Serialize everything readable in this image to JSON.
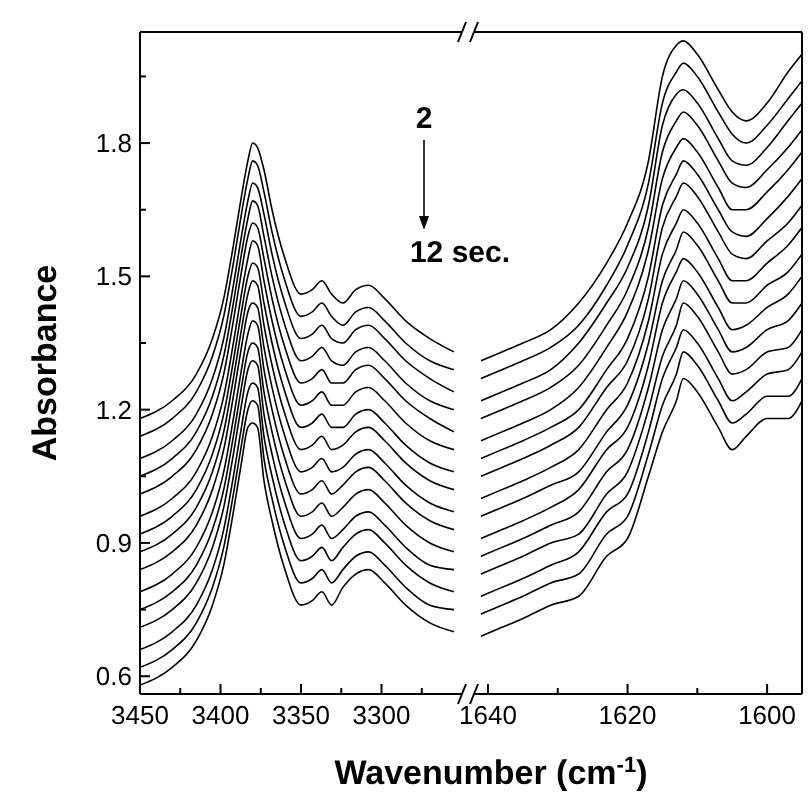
{
  "chart_data": [
    {
      "type": "line",
      "xlabel": "Wavenumber (cm$^{-1}$)",
      "ylabel": "Absorbance",
      "annotations": [
        "2",
        "12 sec."
      ],
      "xlim": [
        3450,
        3250
      ],
      "xticks": [
        3450,
        {
          "value": 3425,
          "label": null
        },
        3400,
        {
          "value": 3375,
          "label": null
        },
        3350,
        {
          "value": 3325,
          "label": null
        },
        3300,
        {
          "value": 3275,
          "label": null
        }
      ],
      "ylim": [
        0.56,
        2.05
      ],
      "yticks": [
        0.6,
        {
          "value": 0.75,
          "label": null
        },
        0.9,
        {
          "value": 1.05,
          "label": null
        },
        1.2,
        {
          "value": 1.35,
          "label": null
        },
        1.5,
        {
          "value": 1.65,
          "label": null
        },
        1.8,
        {
          "value": 1.95,
          "label": null
        }
      ],
      "grid": false,
      "marker": "none",
      "line_style": "solid",
      "x": [
        3450,
        3430,
        3415,
        3405,
        3398,
        3392,
        3387,
        3383,
        3380,
        3377,
        3373,
        3368,
        3360,
        3350,
        3343,
        3337,
        3331,
        3324,
        3316,
        3308,
        3298,
        3285,
        3270,
        3255
      ],
      "series": [
        {
          "color": "#000000",
          "values": [
            1.18,
            1.22,
            1.28,
            1.36,
            1.45,
            1.57,
            1.68,
            1.76,
            1.8,
            1.79,
            1.74,
            1.65,
            1.54,
            1.46,
            1.47,
            1.49,
            1.46,
            1.44,
            1.47,
            1.48,
            1.45,
            1.4,
            1.36,
            1.33
          ]
        },
        {
          "color": "#000000",
          "values": [
            1.14,
            1.18,
            1.24,
            1.32,
            1.41,
            1.53,
            1.64,
            1.72,
            1.76,
            1.75,
            1.69,
            1.6,
            1.49,
            1.41,
            1.42,
            1.44,
            1.41,
            1.39,
            1.42,
            1.43,
            1.4,
            1.35,
            1.31,
            1.29
          ]
        },
        {
          "color": "#000000",
          "values": [
            1.09,
            1.13,
            1.19,
            1.27,
            1.36,
            1.48,
            1.59,
            1.67,
            1.71,
            1.7,
            1.64,
            1.55,
            1.44,
            1.36,
            1.37,
            1.39,
            1.36,
            1.35,
            1.38,
            1.39,
            1.36,
            1.31,
            1.27,
            1.24
          ]
        },
        {
          "color": "#000000",
          "values": [
            1.05,
            1.09,
            1.15,
            1.23,
            1.32,
            1.44,
            1.55,
            1.63,
            1.67,
            1.66,
            1.59,
            1.5,
            1.39,
            1.31,
            1.32,
            1.34,
            1.31,
            1.3,
            1.33,
            1.34,
            1.31,
            1.26,
            1.22,
            1.2
          ]
        },
        {
          "color": "#000000",
          "values": [
            1.01,
            1.05,
            1.11,
            1.19,
            1.28,
            1.4,
            1.51,
            1.59,
            1.62,
            1.61,
            1.54,
            1.45,
            1.34,
            1.26,
            1.27,
            1.29,
            1.26,
            1.26,
            1.29,
            1.3,
            1.27,
            1.22,
            1.18,
            1.15
          ]
        },
        {
          "color": "#000000",
          "values": [
            0.96,
            1.0,
            1.06,
            1.14,
            1.23,
            1.35,
            1.46,
            1.54,
            1.58,
            1.57,
            1.49,
            1.4,
            1.29,
            1.21,
            1.22,
            1.24,
            1.21,
            1.21,
            1.24,
            1.25,
            1.22,
            1.17,
            1.13,
            1.11
          ]
        },
        {
          "color": "#000000",
          "values": [
            0.92,
            0.96,
            1.02,
            1.1,
            1.19,
            1.31,
            1.42,
            1.5,
            1.53,
            1.52,
            1.44,
            1.35,
            1.24,
            1.16,
            1.17,
            1.19,
            1.16,
            1.16,
            1.19,
            1.2,
            1.17,
            1.12,
            1.08,
            1.06
          ]
        },
        {
          "color": "#000000",
          "values": [
            0.88,
            0.92,
            0.98,
            1.06,
            1.15,
            1.27,
            1.38,
            1.46,
            1.49,
            1.48,
            1.39,
            1.3,
            1.19,
            1.11,
            1.12,
            1.14,
            1.11,
            1.12,
            1.15,
            1.16,
            1.13,
            1.08,
            1.04,
            1.02
          ]
        },
        {
          "color": "#000000",
          "values": [
            0.84,
            0.88,
            0.94,
            1.02,
            1.11,
            1.23,
            1.34,
            1.42,
            1.44,
            1.43,
            1.34,
            1.25,
            1.14,
            1.06,
            1.07,
            1.09,
            1.06,
            1.07,
            1.1,
            1.11,
            1.08,
            1.03,
            0.99,
            0.97
          ]
        },
        {
          "color": "#000000",
          "values": [
            0.79,
            0.83,
            0.89,
            0.97,
            1.06,
            1.18,
            1.29,
            1.37,
            1.4,
            1.39,
            1.29,
            1.2,
            1.09,
            1.01,
            1.02,
            1.04,
            1.01,
            1.03,
            1.06,
            1.07,
            1.04,
            0.99,
            0.95,
            0.93
          ]
        },
        {
          "color": "#000000",
          "values": [
            0.75,
            0.79,
            0.85,
            0.93,
            1.02,
            1.14,
            1.25,
            1.33,
            1.35,
            1.34,
            1.24,
            1.15,
            1.04,
            0.96,
            0.97,
            0.99,
            0.96,
            0.98,
            1.01,
            1.02,
            0.99,
            0.94,
            0.9,
            0.88
          ]
        },
        {
          "color": "#000000",
          "values": [
            0.71,
            0.75,
            0.81,
            0.89,
            0.98,
            1.1,
            1.21,
            1.29,
            1.31,
            1.3,
            1.19,
            1.1,
            0.99,
            0.91,
            0.92,
            0.94,
            0.91,
            0.93,
            0.96,
            0.97,
            0.94,
            0.89,
            0.85,
            0.84
          ]
        },
        {
          "color": "#000000",
          "values": [
            0.66,
            0.7,
            0.76,
            0.84,
            0.93,
            1.05,
            1.16,
            1.24,
            1.26,
            1.25,
            1.14,
            1.05,
            0.94,
            0.86,
            0.87,
            0.89,
            0.86,
            0.89,
            0.92,
            0.93,
            0.9,
            0.85,
            0.81,
            0.79
          ]
        },
        {
          "color": "#000000",
          "values": [
            0.62,
            0.66,
            0.72,
            0.8,
            0.89,
            1.01,
            1.12,
            1.2,
            1.22,
            1.21,
            1.09,
            1.0,
            0.89,
            0.81,
            0.82,
            0.84,
            0.81,
            0.84,
            0.87,
            0.88,
            0.85,
            0.8,
            0.76,
            0.75
          ]
        },
        {
          "color": "#000000",
          "values": [
            0.58,
            0.62,
            0.68,
            0.76,
            0.85,
            0.97,
            1.08,
            1.16,
            1.17,
            1.16,
            1.04,
            0.95,
            0.84,
            0.76,
            0.77,
            0.79,
            0.76,
            0.8,
            0.83,
            0.84,
            0.81,
            0.76,
            0.72,
            0.7
          ]
        }
      ]
    },
    {
      "type": "line",
      "tick_labels": "x",
      "xlim": [
        1642,
        1595
      ],
      "xticks": [
        1640,
        {
          "value": 1630,
          "label": null
        },
        1620,
        {
          "value": 1610,
          "label": null
        },
        1600
      ],
      "ylim": [
        0.56,
        2.05
      ],
      "grid": false,
      "marker": "none",
      "line_style": "solid",
      "x": [
        1641,
        1638,
        1635,
        1631,
        1627,
        1623,
        1620,
        1617,
        1615,
        1613,
        1612,
        1610,
        1607,
        1605,
        1603,
        1600,
        1597,
        1595
      ],
      "series": [
        {
          "color": "#000000",
          "values": [
            1.31,
            1.33,
            1.35,
            1.38,
            1.44,
            1.53,
            1.62,
            1.76,
            1.95,
            2.02,
            2.03,
            2.0,
            1.92,
            1.87,
            1.85,
            1.89,
            1.96,
            2.0
          ]
        },
        {
          "color": "#000000",
          "values": [
            1.27,
            1.29,
            1.31,
            1.34,
            1.39,
            1.48,
            1.57,
            1.71,
            1.89,
            1.96,
            1.98,
            1.95,
            1.87,
            1.82,
            1.8,
            1.84,
            1.9,
            1.94
          ]
        },
        {
          "color": "#000000",
          "values": [
            1.22,
            1.24,
            1.26,
            1.29,
            1.35,
            1.44,
            1.52,
            1.66,
            1.84,
            1.91,
            1.92,
            1.89,
            1.81,
            1.76,
            1.75,
            1.79,
            1.85,
            1.89
          ]
        },
        {
          "color": "#000000",
          "values": [
            1.18,
            1.2,
            1.22,
            1.25,
            1.3,
            1.39,
            1.47,
            1.61,
            1.78,
            1.85,
            1.87,
            1.84,
            1.76,
            1.71,
            1.7,
            1.74,
            1.79,
            1.83
          ]
        },
        {
          "color": "#000000",
          "values": [
            1.13,
            1.15,
            1.17,
            1.2,
            1.25,
            1.34,
            1.42,
            1.56,
            1.72,
            1.79,
            1.81,
            1.78,
            1.7,
            1.65,
            1.65,
            1.69,
            1.74,
            1.78
          ]
        },
        {
          "color": "#000000",
          "values": [
            1.09,
            1.11,
            1.13,
            1.16,
            1.2,
            1.29,
            1.36,
            1.5,
            1.66,
            1.73,
            1.76,
            1.73,
            1.65,
            1.6,
            1.59,
            1.63,
            1.68,
            1.72
          ]
        },
        {
          "color": "#000000",
          "values": [
            1.05,
            1.07,
            1.09,
            1.12,
            1.16,
            1.25,
            1.31,
            1.45,
            1.61,
            1.68,
            1.71,
            1.68,
            1.6,
            1.55,
            1.54,
            1.58,
            1.62,
            1.66
          ]
        },
        {
          "color": "#000000",
          "values": [
            1.0,
            1.02,
            1.04,
            1.07,
            1.11,
            1.2,
            1.26,
            1.4,
            1.55,
            1.62,
            1.65,
            1.62,
            1.54,
            1.49,
            1.49,
            1.53,
            1.57,
            1.61
          ]
        },
        {
          "color": "#000000",
          "values": [
            0.96,
            0.98,
            1.0,
            1.03,
            1.06,
            1.15,
            1.21,
            1.35,
            1.49,
            1.56,
            1.6,
            1.57,
            1.49,
            1.44,
            1.44,
            1.48,
            1.51,
            1.55
          ]
        },
        {
          "color": "#000000",
          "values": [
            0.91,
            0.93,
            0.95,
            0.98,
            1.02,
            1.11,
            1.16,
            1.3,
            1.44,
            1.51,
            1.54,
            1.51,
            1.43,
            1.38,
            1.39,
            1.43,
            1.46,
            1.5
          ]
        },
        {
          "color": "#000000",
          "values": [
            0.87,
            0.89,
            0.91,
            0.94,
            0.97,
            1.06,
            1.11,
            1.25,
            1.38,
            1.45,
            1.49,
            1.46,
            1.38,
            1.33,
            1.34,
            1.38,
            1.4,
            1.44
          ]
        },
        {
          "color": "#000000",
          "values": [
            0.83,
            0.85,
            0.87,
            0.9,
            0.92,
            1.01,
            1.06,
            1.2,
            1.32,
            1.39,
            1.44,
            1.41,
            1.33,
            1.28,
            1.29,
            1.33,
            1.34,
            1.38
          ]
        },
        {
          "color": "#000000",
          "values": [
            0.78,
            0.8,
            0.82,
            0.85,
            0.88,
            0.97,
            1.01,
            1.15,
            1.27,
            1.34,
            1.38,
            1.35,
            1.27,
            1.22,
            1.24,
            1.28,
            1.29,
            1.33
          ]
        },
        {
          "color": "#000000",
          "values": [
            0.74,
            0.76,
            0.78,
            0.81,
            0.83,
            0.92,
            0.96,
            1.1,
            1.21,
            1.28,
            1.33,
            1.3,
            1.22,
            1.17,
            1.19,
            1.23,
            1.23,
            1.27
          ]
        },
        {
          "color": "#000000",
          "values": [
            0.69,
            0.71,
            0.73,
            0.76,
            0.78,
            0.87,
            0.91,
            1.05,
            1.15,
            1.22,
            1.27,
            1.24,
            1.16,
            1.11,
            1.14,
            1.18,
            1.18,
            1.22
          ]
        }
      ]
    }
  ]
}
